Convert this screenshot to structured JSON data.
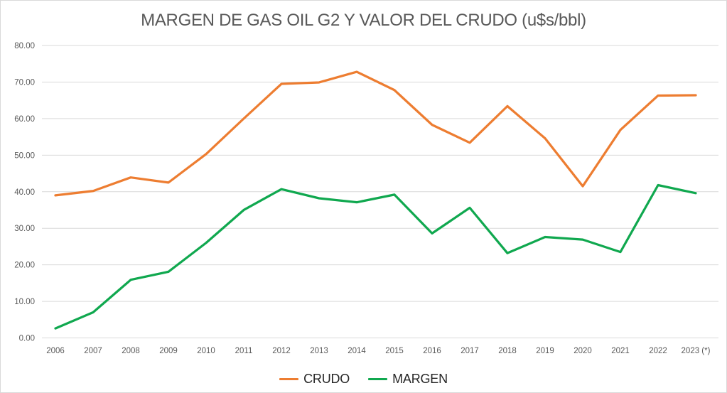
{
  "title": "MARGEN DE GAS OIL G2 Y VALOR DEL CRUDO (u$s/bbl)",
  "legend": {
    "items": [
      {
        "label": "CRUDO",
        "color": "#ED7D31"
      },
      {
        "label": "MARGEN",
        "color": "#10A84F"
      }
    ],
    "position": "bottom"
  },
  "chart_data": {
    "type": "line",
    "title": "MARGEN DE GAS OIL G2 Y VALOR DEL CRUDO (u$s/bbl)",
    "categories": [
      "2006",
      "2007",
      "2008",
      "2009",
      "2010",
      "2011",
      "2012",
      "2013",
      "2014",
      "2015",
      "2016",
      "2017",
      "2018",
      "2019",
      "2020",
      "2021",
      "2022",
      "2023 (*)"
    ],
    "series": [
      {
        "name": "CRUDO",
        "color": "#ED7D31",
        "values": [
          39.0,
          40.2,
          43.9,
          42.5,
          50.3,
          60.0,
          69.5,
          69.9,
          72.8,
          67.8,
          58.3,
          53.4,
          63.4,
          54.6,
          41.5,
          56.9,
          66.3,
          66.4
        ]
      },
      {
        "name": "MARGEN",
        "color": "#10A84F",
        "values": [
          2.6,
          7.0,
          15.9,
          18.1,
          26.0,
          35.0,
          40.7,
          38.2,
          37.1,
          39.2,
          28.6,
          35.6,
          23.2,
          27.6,
          26.9,
          23.5,
          41.8,
          39.6
        ]
      }
    ],
    "xlabel": "",
    "ylabel": "",
    "ylim": [
      0,
      80
    ],
    "ytick_step": 10,
    "ytick_labels": [
      "0.00",
      "10.00",
      "20.00",
      "30.00",
      "40.00",
      "50.00",
      "60.00",
      "70.00",
      "80.00"
    ],
    "grid": "horizontal",
    "gridline_color": "#d9d9d9",
    "tick_label_color": "#595959",
    "legend_position": "bottom"
  }
}
